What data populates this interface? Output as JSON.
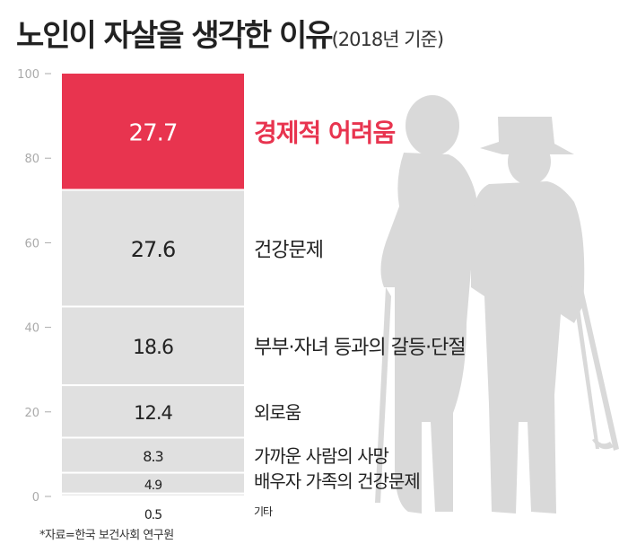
{
  "chart_data": {
    "type": "bar",
    "stacked": true,
    "title": "노인이 자살을 생각한 이유",
    "subtitle": "(2018년 기준)",
    "ylim": [
      0,
      100
    ],
    "yticks": [
      "0",
      "20",
      "40",
      "60",
      "80",
      "100"
    ],
    "grid": false,
    "categories": [
      "경제적 어려움",
      "건강문제",
      "부부·자녀 등과의 갈등·단절",
      "외로움",
      "가까운 사람의 사망",
      "배우자 가족의 건강문제",
      "기타"
    ],
    "values": [
      27.7,
      27.6,
      18.6,
      12.4,
      8.3,
      4.9,
      0.5
    ],
    "value_labels": [
      "27.7",
      "27.6",
      "18.6",
      "12.4",
      "8.3",
      "4.9",
      "0.5"
    ],
    "highlight_color": "#e8344f",
    "base_color": "#e0e0e0",
    "silhouette_color": "#d9d9d9"
  },
  "source": "*자료=한국 보건사회 연구원"
}
